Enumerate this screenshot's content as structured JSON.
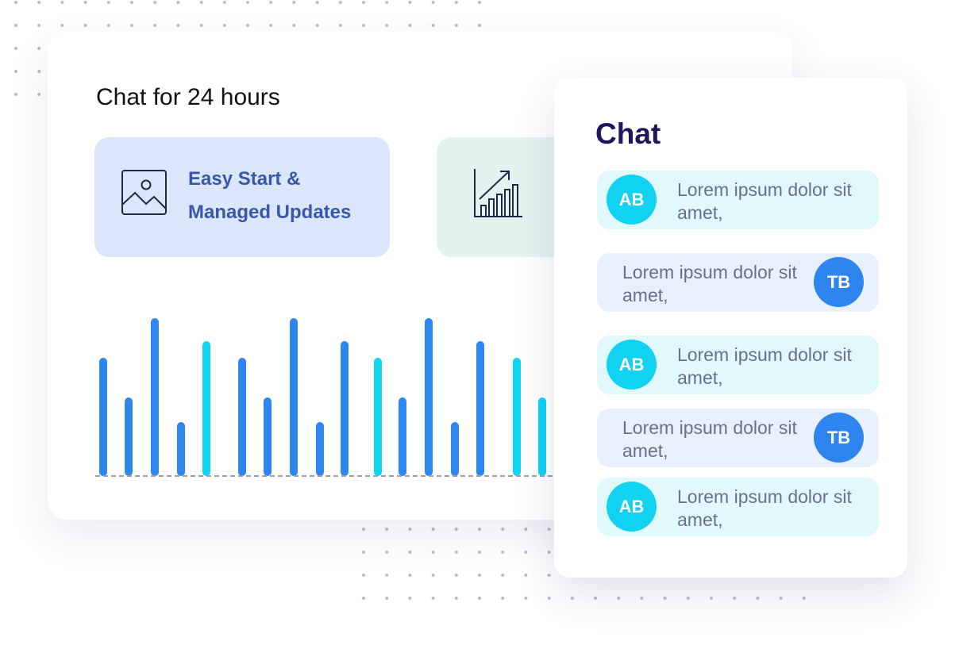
{
  "main_card": {
    "title": "Chat for 24 hours",
    "features": [
      {
        "label": "Easy Start & Managed Updates"
      }
    ]
  },
  "chat_panel": {
    "title": "Chat",
    "messages": [
      {
        "initials": "AB",
        "text": "Lorem ipsum dolor sit amet,"
      },
      {
        "initials": "TB",
        "text": "Lorem ipsum dolor sit amet,"
      },
      {
        "initials": "AB",
        "text": "Lorem ipsum dolor sit amet,"
      },
      {
        "initials": "TB",
        "text": "Lorem ipsum dolor sit amet,"
      },
      {
        "initials": "AB",
        "text": "Lorem ipsum dolor sit amet,"
      }
    ]
  }
}
